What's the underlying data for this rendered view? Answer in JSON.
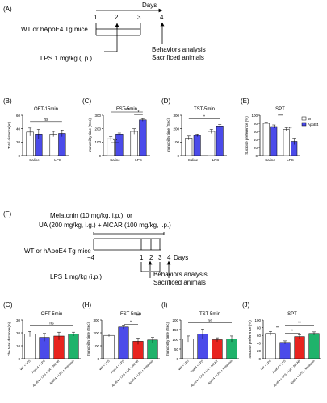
{
  "colors": {
    "wt": "#ffffff",
    "apoe4": "#4b4bea",
    "red": "#e8231f",
    "green": "#1fb36b",
    "stroke": "#000000"
  },
  "panelA": {
    "label": "(A)",
    "days_label": "Days",
    "day_ticks": [
      "1",
      "2",
      "3",
      "4"
    ],
    "mice_label": "WT or hApoE4 Tg mice",
    "lps_label": "LPS 1 mg/kg (i.p.)",
    "behavior_label": "Behaviors analysis",
    "sacrifice_label": "Sacrificed animals"
  },
  "panelF": {
    "label": "(F)",
    "treatment_line1": "Melatonin (10 mg/kg, i.p.), or",
    "treatment_line2": "UA (200 mg/kg, i.g.) + AICAR (100 mg/kg, i.p.)",
    "mice_label": "WT or hApoE4 Tg mice",
    "day_ticks": [
      "−4",
      "1",
      "2",
      "3",
      "4"
    ],
    "days_label": "Days",
    "lps_label": "LPS 1 mg/kg (i.p.)",
    "behavior_label": "Behaviors analysis",
    "sacrifice_label": "Sacrificed animals"
  },
  "chart_data": [
    {
      "panel": "(B)",
      "type": "bar",
      "title": "OFT-15min",
      "ylabel": "Total distance(m)",
      "ylim": [
        0,
        60
      ],
      "yticks": [
        "0",
        "20",
        "40",
        "60"
      ],
      "categories": [
        "Saline",
        "LPS"
      ],
      "series": [
        {
          "name": "WT",
          "values": [
            35,
            32
          ],
          "errors": [
            6,
            4
          ]
        },
        {
          "name": "ApoE4",
          "values": [
            32,
            33
          ],
          "errors": [
            7,
            5
          ]
        }
      ],
      "significance": [
        "ns"
      ]
    },
    {
      "panel": "(C)",
      "type": "bar",
      "title": "FST-5min",
      "ylabel": "Immobility time (Sec)",
      "ylim": [
        0,
        300
      ],
      "yticks": [
        "0",
        "100",
        "200",
        "300"
      ],
      "categories": [
        "Saline",
        "LPS"
      ],
      "series": [
        {
          "name": "WT",
          "values": [
            125,
            180
          ],
          "errors": [
            15,
            20
          ]
        },
        {
          "name": "ApoE4",
          "values": [
            160,
            265
          ],
          "errors": [
            8,
            10
          ]
        }
      ],
      "significance": [
        "****",
        "***",
        "*"
      ]
    },
    {
      "panel": "(D)",
      "type": "bar",
      "title": "TST-5min",
      "ylabel": "Immobility time (Sec)",
      "ylim": [
        0,
        300
      ],
      "yticks": [
        "0",
        "100",
        "200",
        "300"
      ],
      "categories": [
        "Saline",
        "LPS"
      ],
      "series": [
        {
          "name": "WT",
          "values": [
            130,
            180
          ],
          "errors": [
            15,
            15
          ]
        },
        {
          "name": "ApoE4",
          "values": [
            150,
            220
          ],
          "errors": [
            10,
            10
          ]
        }
      ],
      "significance": [
        "*"
      ]
    },
    {
      "panel": "(E)",
      "type": "bar",
      "title": "SPT",
      "ylabel": "Sucrose preference (%)",
      "ylim": [
        0,
        100
      ],
      "yticks": [
        "0",
        "20",
        "40",
        "60",
        "80",
        "100"
      ],
      "categories": [
        "Saline",
        "LPS"
      ],
      "legend": [
        "WT",
        "ApoE4"
      ],
      "legend_position": "top-right",
      "series": [
        {
          "name": "WT",
          "values": [
            80,
            65
          ],
          "errors": [
            3,
            4
          ]
        },
        {
          "name": "ApoE4",
          "values": [
            72,
            35
          ],
          "errors": [
            4,
            8
          ]
        }
      ],
      "significance": [
        "***",
        "**"
      ]
    },
    {
      "panel": "(G)",
      "type": "bar",
      "title": "OFT-5min",
      "ylabel": "The total distance(m)",
      "ylim": [
        0,
        30
      ],
      "yticks": [
        "0",
        "10",
        "20",
        "30"
      ],
      "categories": [
        "WT + LPS",
        "ApoE4 + LPS",
        "ApoE4 + LPS + UA + AICAR",
        "ApoE4 + LPS + Melatonin"
      ],
      "values": [
        19,
        16.5,
        17.5,
        19
      ],
      "errors": [
        2,
        3,
        3,
        1.5
      ],
      "significance": [
        "ns"
      ]
    },
    {
      "panel": "(H)",
      "type": "bar",
      "title": "FST-5min",
      "ylabel": "Immobility time (Sec)",
      "ylim": [
        0,
        300
      ],
      "yticks": [
        "0",
        "100",
        "200",
        "300"
      ],
      "categories": [
        "WT + LPS",
        "ApoE4 + LPS",
        "ApoE4 + LPS + UA + AICAR",
        "ApoE4 + LPS + Melatonin"
      ],
      "values": [
        180,
        245,
        135,
        145
      ],
      "errors": [
        10,
        15,
        25,
        20
      ],
      "significance": [
        "**",
        "*"
      ]
    },
    {
      "panel": "(I)",
      "type": "bar",
      "title": "TST-5min",
      "ylabel": "Immobility time (Sec)",
      "ylim": [
        0,
        200
      ],
      "yticks": [
        "0",
        "50",
        "100",
        "150",
        "200"
      ],
      "categories": [
        "WT + LPS",
        "ApoE4 + LPS",
        "ApoE4 + LPS + UA + AICAR",
        "ApoE4 + LPS + Melatonin"
      ],
      "values": [
        102,
        128,
        98,
        102
      ],
      "errors": [
        15,
        25,
        10,
        15
      ],
      "significance": [
        "ns"
      ]
    },
    {
      "panel": "(J)",
      "type": "bar",
      "title": "SPT",
      "ylabel": "Sucrose preference (%)",
      "ylim": [
        0,
        100
      ],
      "yticks": [
        "0",
        "20",
        "40",
        "60",
        "80",
        "100"
      ],
      "categories": [
        "WT + LPS",
        "ApoE4 + LPS",
        "ApoE4 + LPS + UA + AICAR",
        "ApoE4 + LPS + Melatonin"
      ],
      "values": [
        65,
        42,
        57,
        65
      ],
      "errors": [
        5,
        4,
        5,
        4
      ],
      "significance": [
        "**",
        "**",
        "*"
      ]
    }
  ]
}
